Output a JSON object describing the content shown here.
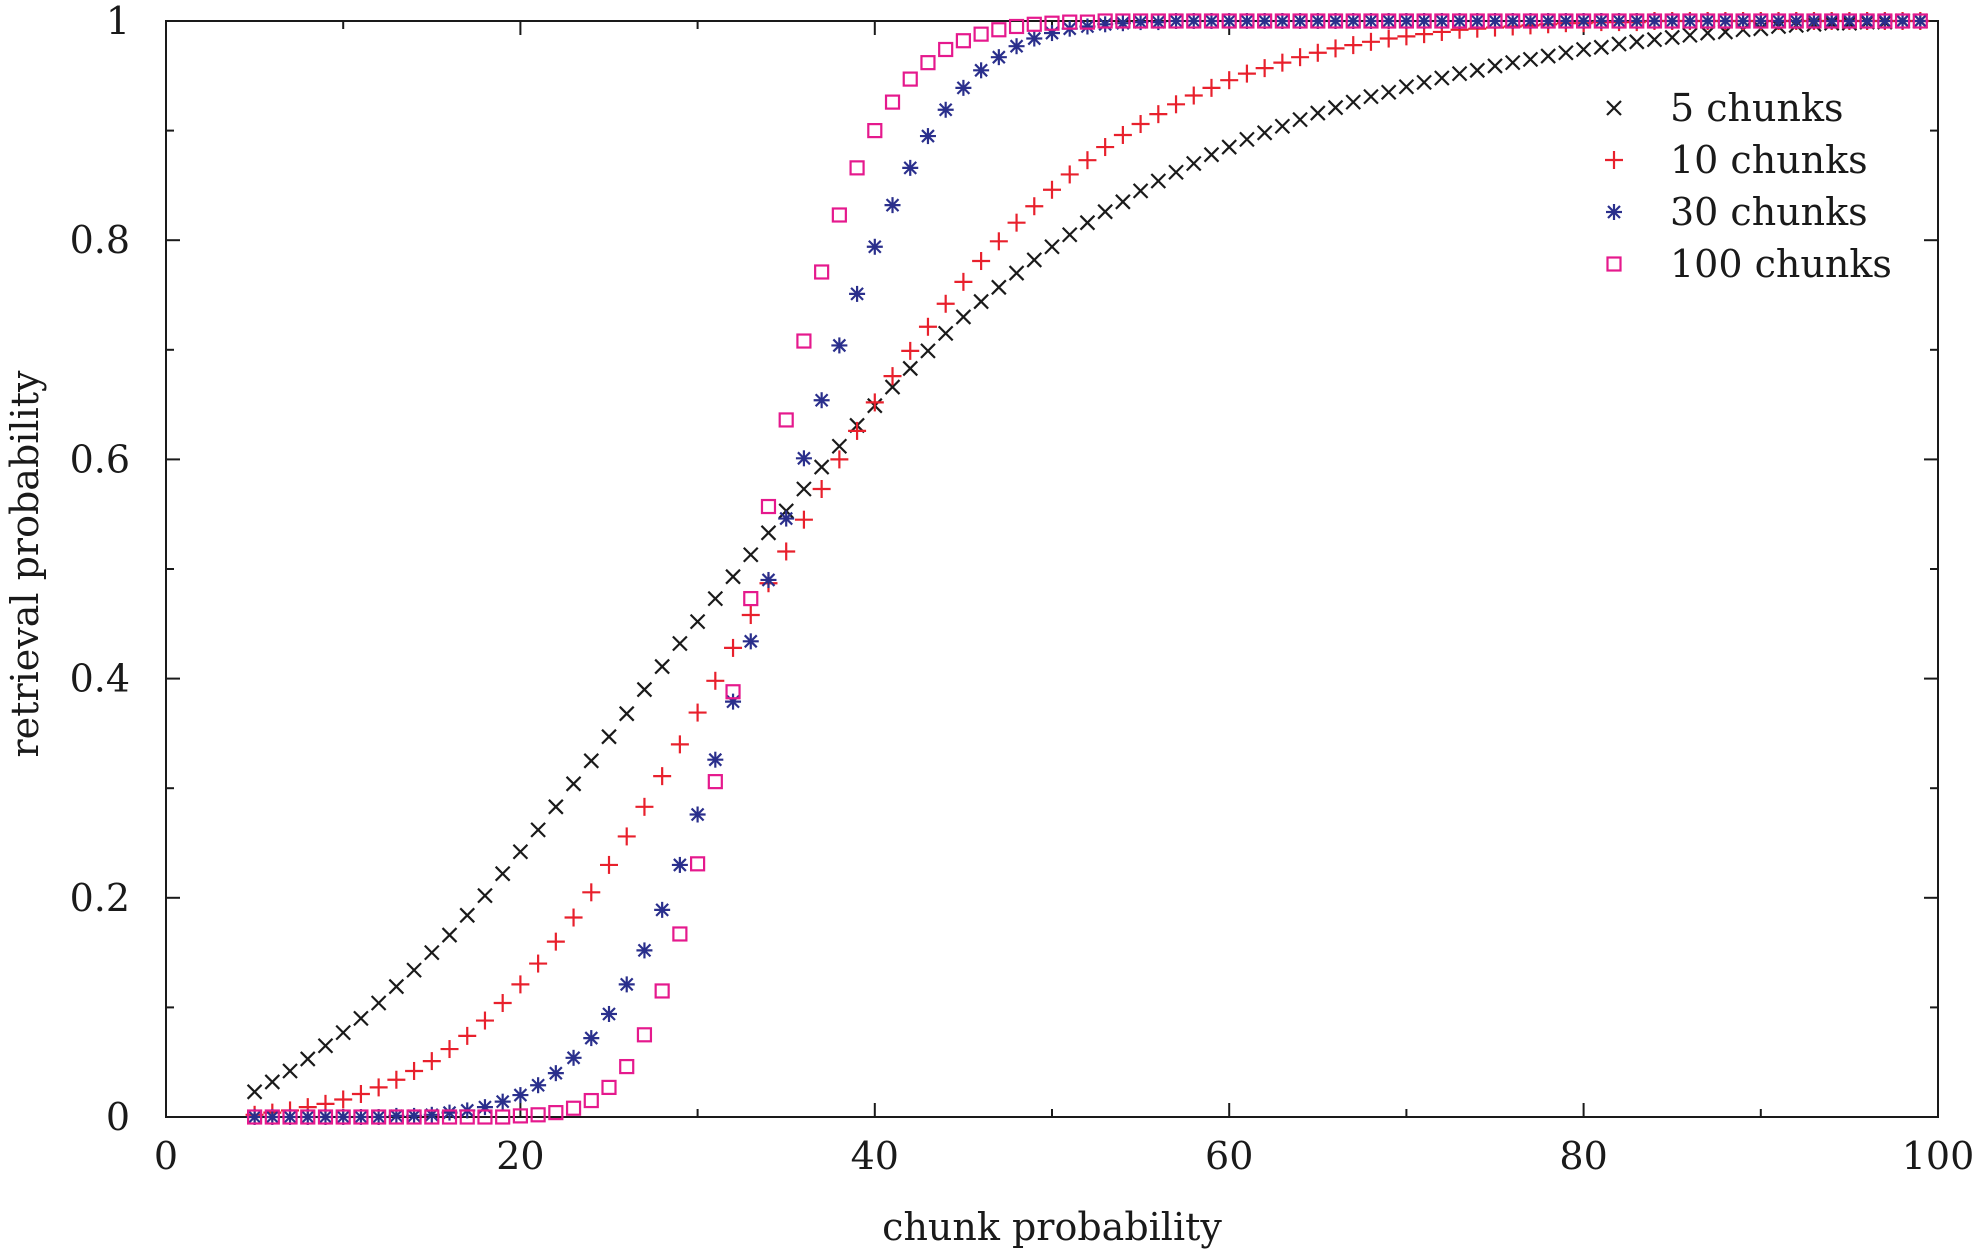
{
  "chart_data": {
    "type": "scatter",
    "title": "",
    "xlabel": "chunk probability",
    "ylabel": "retrieval probability",
    "xlim": [
      0,
      100
    ],
    "ylim": [
      0,
      1
    ],
    "xticks": [
      0,
      20,
      40,
      60,
      80,
      100
    ],
    "yticks": [
      0,
      0.2,
      0.4,
      0.6,
      0.8,
      1
    ],
    "xtick_labels": [
      "0",
      "20",
      "40",
      "60",
      "80",
      "100"
    ],
    "ytick_labels": [
      "0",
      "0.2",
      "0.4",
      "0.6",
      "0.8",
      "1"
    ],
    "grid": false,
    "legend_position": "top-right",
    "x": [
      5,
      6,
      7,
      8,
      9,
      10,
      11,
      12,
      13,
      14,
      15,
      16,
      17,
      18,
      19,
      20,
      21,
      22,
      23,
      24,
      25,
      26,
      27,
      28,
      29,
      30,
      31,
      32,
      33,
      34,
      35,
      36,
      37,
      38,
      39,
      40,
      41,
      42,
      43,
      44,
      45,
      46,
      47,
      48,
      49,
      50,
      51,
      52,
      53,
      54,
      55,
      56,
      57,
      58,
      59,
      60,
      61,
      62,
      63,
      64,
      65,
      66,
      67,
      68,
      69,
      70,
      71,
      72,
      73,
      74,
      75,
      76,
      77,
      78,
      79,
      80,
      81,
      82,
      83,
      84,
      85,
      86,
      87,
      88,
      89,
      90,
      91,
      92,
      93,
      94,
      95,
      96,
      97,
      98,
      99
    ],
    "series": [
      {
        "name": "5 chunks",
        "marker": "x",
        "color": "#1a1a1a",
        "values": [
          0.023,
          0.032,
          0.042,
          0.053,
          0.065,
          0.077,
          0.09,
          0.104,
          0.119,
          0.134,
          0.15,
          0.166,
          0.184,
          0.202,
          0.222,
          0.242,
          0.262,
          0.283,
          0.304,
          0.325,
          0.347,
          0.368,
          0.39,
          0.411,
          0.432,
          0.452,
          0.473,
          0.493,
          0.513,
          0.533,
          0.553,
          0.573,
          0.593,
          0.612,
          0.631,
          0.649,
          0.666,
          0.683,
          0.699,
          0.715,
          0.73,
          0.744,
          0.757,
          0.77,
          0.782,
          0.794,
          0.805,
          0.816,
          0.826,
          0.835,
          0.845,
          0.854,
          0.862,
          0.87,
          0.878,
          0.885,
          0.892,
          0.898,
          0.904,
          0.91,
          0.916,
          0.921,
          0.926,
          0.931,
          0.935,
          0.94,
          0.944,
          0.948,
          0.952,
          0.955,
          0.959,
          0.962,
          0.965,
          0.968,
          0.971,
          0.974,
          0.976,
          0.979,
          0.981,
          0.983,
          0.985,
          0.987,
          0.989,
          0.99,
          0.992,
          0.993,
          0.995,
          0.996,
          0.997,
          0.998,
          0.998,
          0.999,
          0.999,
          1.0,
          1.0
        ]
      },
      {
        "name": "10 chunks",
        "marker": "+",
        "color": "#e8202c",
        "values": [
          0.002,
          0.004,
          0.006,
          0.009,
          0.012,
          0.016,
          0.021,
          0.027,
          0.034,
          0.042,
          0.051,
          0.062,
          0.074,
          0.088,
          0.104,
          0.121,
          0.14,
          0.16,
          0.182,
          0.205,
          0.23,
          0.256,
          0.283,
          0.311,
          0.34,
          0.369,
          0.398,
          0.428,
          0.458,
          0.487,
          0.516,
          0.545,
          0.573,
          0.6,
          0.626,
          0.652,
          0.676,
          0.699,
          0.721,
          0.742,
          0.762,
          0.781,
          0.799,
          0.816,
          0.831,
          0.846,
          0.86,
          0.873,
          0.885,
          0.896,
          0.906,
          0.915,
          0.924,
          0.932,
          0.939,
          0.946,
          0.952,
          0.957,
          0.962,
          0.967,
          0.971,
          0.975,
          0.978,
          0.981,
          0.984,
          0.986,
          0.988,
          0.99,
          0.992,
          0.993,
          0.994,
          0.995,
          0.996,
          0.997,
          0.998,
          0.998,
          0.999,
          0.999,
          0.999,
          1.0,
          1.0,
          1.0,
          1.0,
          1.0,
          1.0,
          1.0,
          1.0,
          1.0,
          1.0,
          1.0,
          1.0,
          1.0,
          1.0,
          1.0,
          1.0
        ]
      },
      {
        "name": "30 chunks",
        "marker": "*",
        "color": "#2a2f8c",
        "values": [
          0.0,
          0.0,
          0.0,
          0.0,
          0.0,
          0.0,
          0.0,
          0.0,
          0.001,
          0.001,
          0.002,
          0.004,
          0.006,
          0.009,
          0.014,
          0.02,
          0.029,
          0.04,
          0.054,
          0.072,
          0.094,
          0.121,
          0.152,
          0.189,
          0.23,
          0.276,
          0.326,
          0.379,
          0.434,
          0.49,
          0.546,
          0.601,
          0.654,
          0.704,
          0.751,
          0.794,
          0.832,
          0.866,
          0.895,
          0.919,
          0.939,
          0.955,
          0.967,
          0.977,
          0.984,
          0.989,
          0.993,
          0.995,
          0.997,
          0.998,
          0.999,
          0.999,
          1.0,
          1.0,
          1.0,
          1.0,
          1.0,
          1.0,
          1.0,
          1.0,
          1.0,
          1.0,
          1.0,
          1.0,
          1.0,
          1.0,
          1.0,
          1.0,
          1.0,
          1.0,
          1.0,
          1.0,
          1.0,
          1.0,
          1.0,
          1.0,
          1.0,
          1.0,
          1.0,
          1.0,
          1.0,
          1.0,
          1.0,
          1.0,
          1.0,
          1.0,
          1.0,
          1.0,
          1.0,
          1.0,
          1.0,
          1.0,
          1.0,
          1.0,
          1.0
        ]
      },
      {
        "name": "100 chunks",
        "marker": "square",
        "color": "#e5198d",
        "values": [
          0.0,
          0.0,
          0.0,
          0.0,
          0.0,
          0.0,
          0.0,
          0.0,
          0.0,
          0.0,
          0.0,
          0.0,
          0.0,
          0.0,
          0.0,
          0.001,
          0.002,
          0.004,
          0.008,
          0.015,
          0.027,
          0.046,
          0.075,
          0.115,
          0.167,
          0.231,
          0.306,
          0.388,
          0.473,
          0.557,
          0.636,
          0.708,
          0.771,
          0.823,
          0.866,
          0.9,
          0.926,
          0.947,
          0.962,
          0.974,
          0.982,
          0.988,
          0.992,
          0.995,
          0.997,
          0.998,
          0.999,
          0.999,
          1.0,
          1.0,
          1.0,
          1.0,
          1.0,
          1.0,
          1.0,
          1.0,
          1.0,
          1.0,
          1.0,
          1.0,
          1.0,
          1.0,
          1.0,
          1.0,
          1.0,
          1.0,
          1.0,
          1.0,
          1.0,
          1.0,
          1.0,
          1.0,
          1.0,
          1.0,
          1.0,
          1.0,
          1.0,
          1.0,
          1.0,
          1.0,
          1.0,
          1.0,
          1.0,
          1.0,
          1.0,
          1.0,
          1.0,
          1.0,
          1.0,
          1.0,
          1.0,
          1.0,
          1.0,
          1.0,
          1.0
        ]
      }
    ]
  }
}
